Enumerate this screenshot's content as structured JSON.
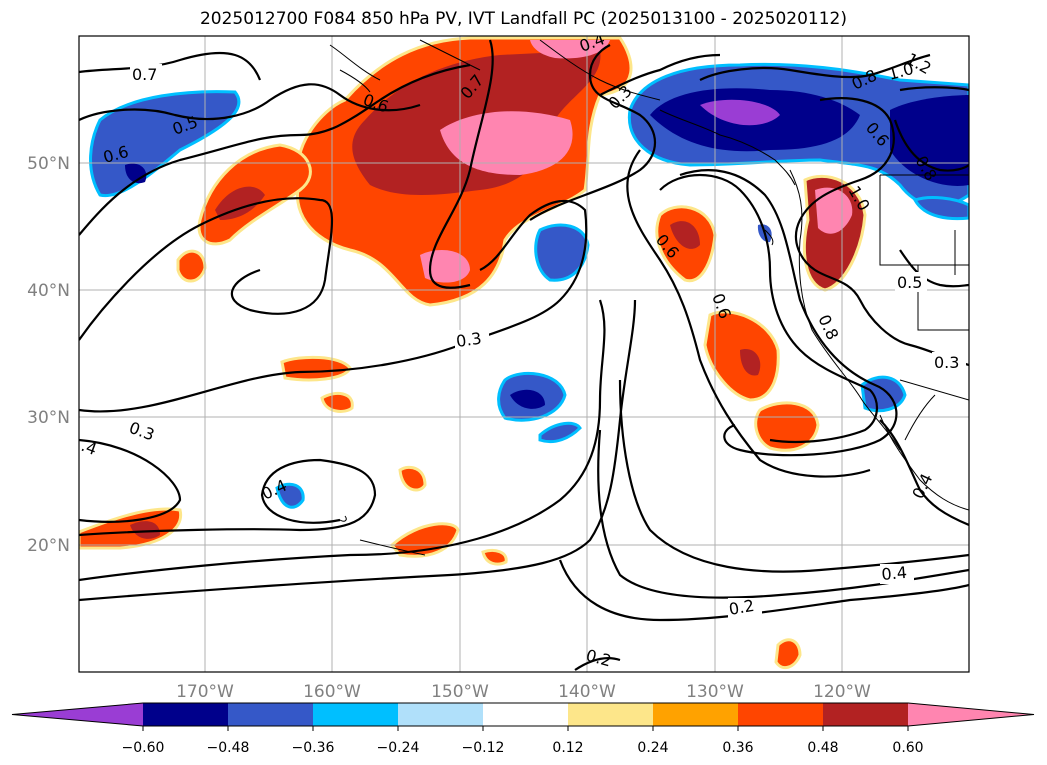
{
  "title": "2025012700 F084 850 hPa PV, IVT Landfall PC (2025013100 - 2025020112)",
  "map": {
    "lon_labels": [
      "170°W",
      "160°W",
      "150°W",
      "140°W",
      "130°W",
      "120°W"
    ],
    "lat_labels": [
      "50°N",
      "40°N",
      "30°N",
      "20°N"
    ],
    "contour_labels": [
      "0.7",
      "0.6",
      "0.5",
      "0.6",
      "0.7",
      "0.3",
      "0.4",
      "0.6",
      "0.8",
      "0.6",
      "1.0",
      "1.2",
      "0.8",
      "1.0",
      "0.6",
      "0.8",
      "0.5",
      "0.3",
      "0.3",
      "0.3",
      ".4",
      "0.4",
      "0.4",
      "0.4",
      "0.2",
      "0.2"
    ]
  },
  "colorbar": {
    "ticks": [
      "−0.60",
      "−0.48",
      "−0.36",
      "−0.24",
      "−0.12",
      "0.12",
      "0.24",
      "0.36",
      "0.48",
      "0.60"
    ],
    "colors": [
      "#9a3dd4",
      "#00008b",
      "#3558c8",
      "#00bfff",
      "#b0e0fa",
      "#ffffff",
      "#fde68a",
      "#ffa200",
      "#ff4500",
      "#b22222",
      "#ff85b0"
    ]
  }
}
